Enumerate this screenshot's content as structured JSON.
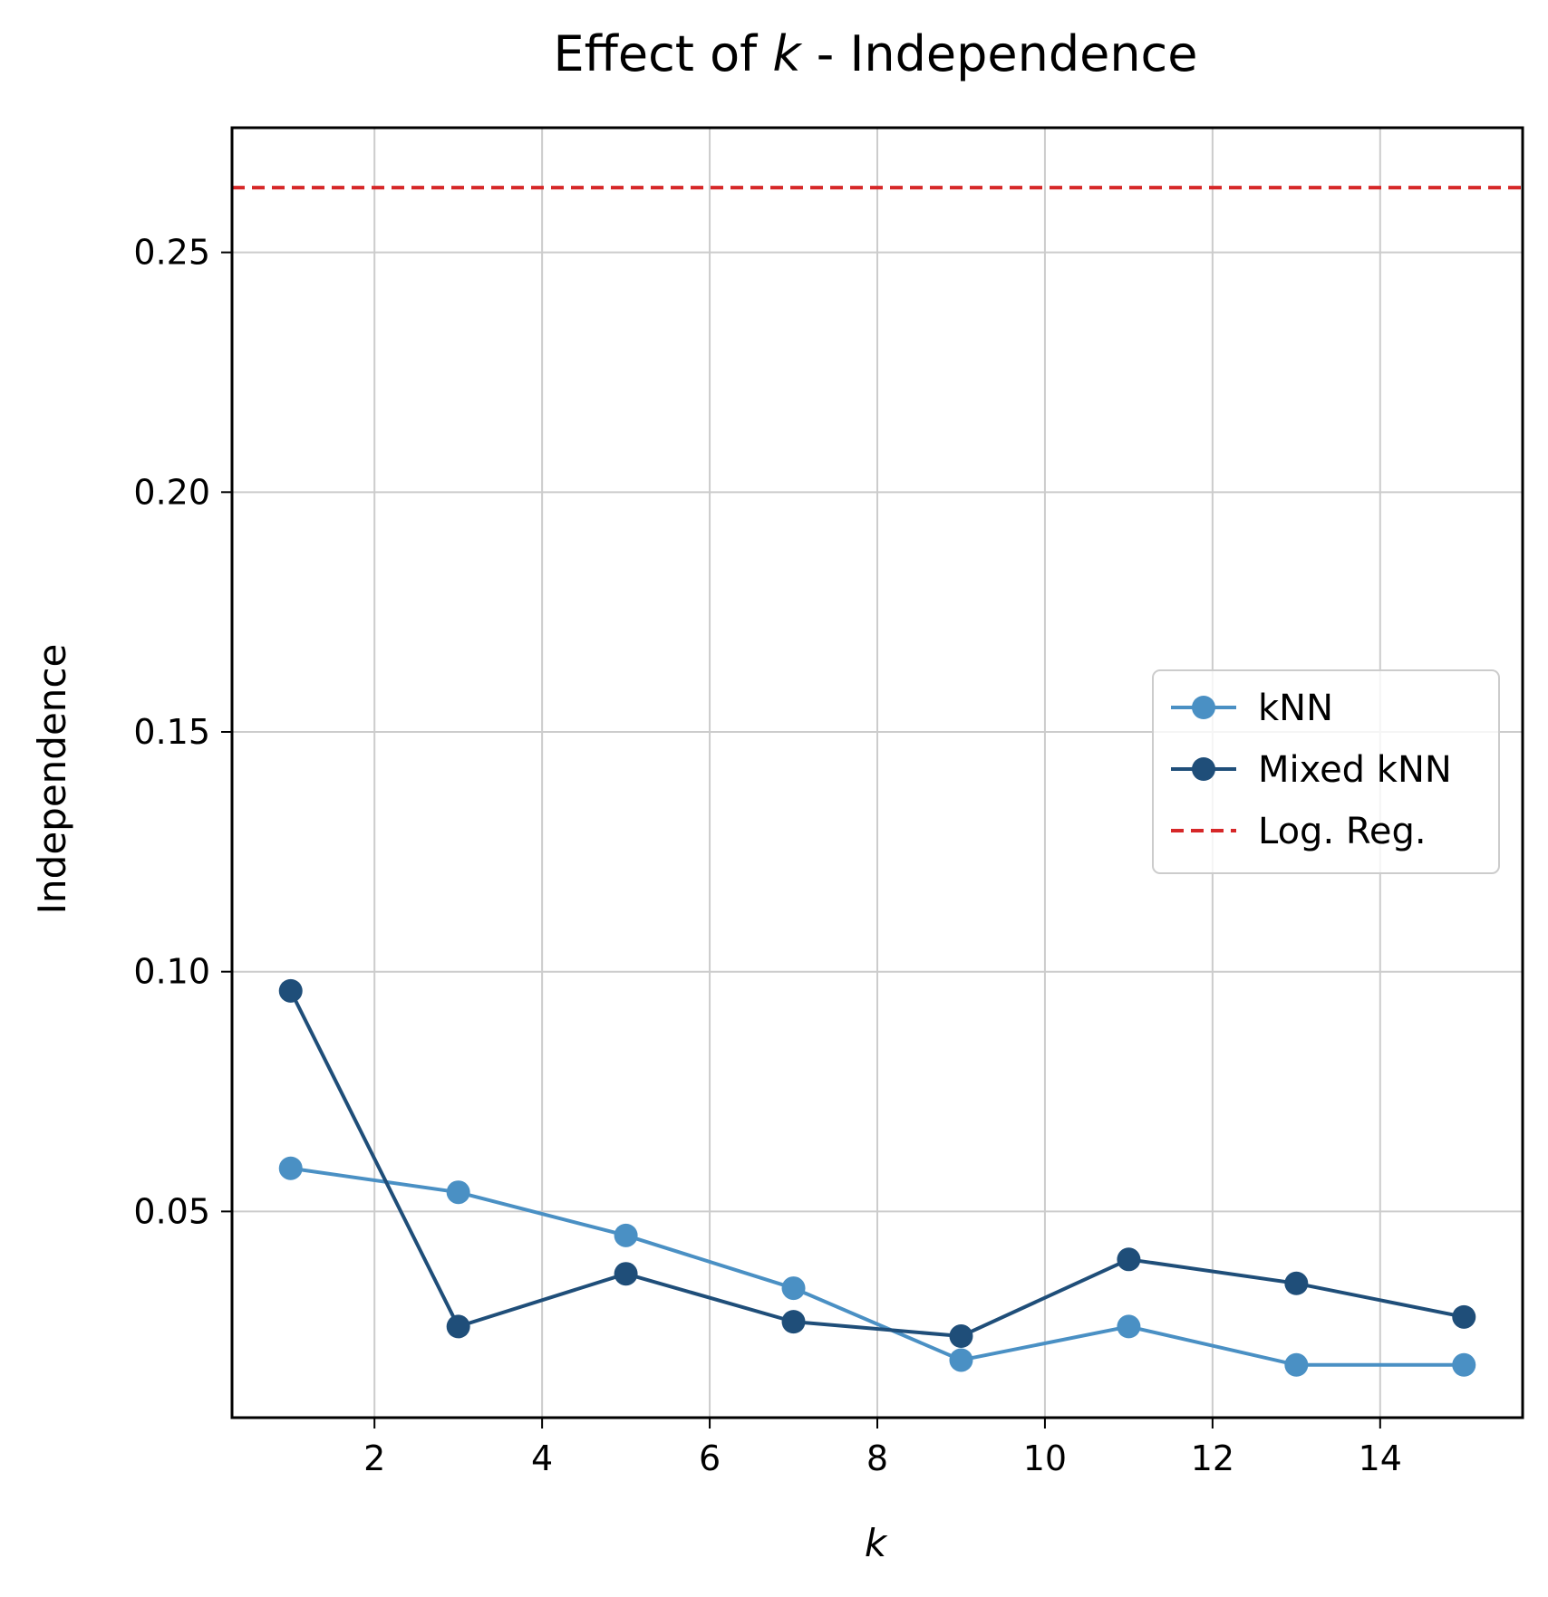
{
  "chart_data": {
    "type": "line",
    "title_prefix": "Effect of ",
    "title_var": "k",
    "title_suffix": " - Independence",
    "xlabel": "k",
    "ylabel": "Independence",
    "xlim": [
      0.3,
      15.7
    ],
    "ylim": [
      0.007,
      0.276
    ],
    "xticks": [
      2,
      4,
      6,
      8,
      10,
      12,
      14
    ],
    "yticks": [
      0.05,
      0.1,
      0.15,
      0.2,
      0.25
    ],
    "ytick_labels": [
      "0.05",
      "0.10",
      "0.15",
      "0.20",
      "0.25"
    ],
    "grid": true,
    "legend_position": "center-right",
    "x": [
      1,
      3,
      5,
      7,
      9,
      11,
      13,
      15
    ],
    "series": [
      {
        "name": "kNN",
        "color": "#4a90c4",
        "values": [
          0.059,
          0.054,
          0.045,
          0.034,
          0.019,
          0.026,
          0.018,
          0.018
        ]
      },
      {
        "name": "Mixed kNN",
        "color": "#1f4e79",
        "values": [
          0.096,
          0.026,
          0.037,
          0.027,
          0.024,
          0.04,
          0.035,
          0.028
        ]
      }
    ],
    "reference_line": {
      "name": "Log. Reg.",
      "color": "#d62728",
      "value": 0.2635
    }
  }
}
